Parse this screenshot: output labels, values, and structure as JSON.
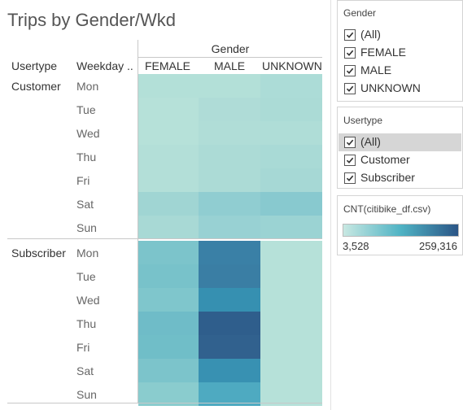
{
  "sheet": {
    "title": "Trips by Gender/Wkd",
    "row_headers": [
      "Usertype",
      "Weekday .."
    ],
    "column_group": "Gender",
    "columns": [
      "FEMALE",
      "MALE",
      "UNKNOWN"
    ],
    "rows": [
      {
        "usertype": "Customer",
        "weekday": "Mon",
        "values": [
          "#b3e0d8",
          "#b3e0d8",
          "#acdcd7"
        ]
      },
      {
        "usertype": "",
        "weekday": "Tue",
        "values": [
          "#b6e1d9",
          "#afdcd7",
          "#abdbd6"
        ]
      },
      {
        "usertype": "",
        "weekday": "Wed",
        "values": [
          "#b6e1d9",
          "#b0ddd7",
          "#afddd7"
        ]
      },
      {
        "usertype": "",
        "weekday": "Thu",
        "values": [
          "#b3dfd8",
          "#acdbd6",
          "#a9dad6"
        ]
      },
      {
        "usertype": "",
        "weekday": "Fri",
        "values": [
          "#b3dfd8",
          "#acdbd6",
          "#a6d8d5"
        ]
      },
      {
        "usertype": "",
        "weekday": "Sat",
        "values": [
          "#a0d5d3",
          "#90cdd1",
          "#88c9cf"
        ]
      },
      {
        "usertype": "",
        "weekday": "Sun",
        "values": [
          "#a8d9d5",
          "#98d1d3",
          "#9bd3d3"
        ]
      },
      {
        "usertype": "Subscriber",
        "weekday": "Mon",
        "values": [
          "#7cc4cb",
          "#3a80a6",
          "#b6e1d9"
        ]
      },
      {
        "usertype": "",
        "weekday": "Tue",
        "values": [
          "#78c2ca",
          "#3a7ea4",
          "#b6e1d9"
        ]
      },
      {
        "usertype": "",
        "weekday": "Wed",
        "values": [
          "#7fc6cc",
          "#3690b1",
          "#b6e1d9"
        ]
      },
      {
        "usertype": "",
        "weekday": "Thu",
        "values": [
          "#6fbcc8",
          "#2f5e8c",
          "#b6e1d9"
        ]
      },
      {
        "usertype": "",
        "weekday": "Fri",
        "values": [
          "#70bec8",
          "#31618e",
          "#b6e1d9"
        ]
      },
      {
        "usertype": "",
        "weekday": "Sat",
        "values": [
          "#7cc4cb",
          "#3891b2",
          "#b6e1d9"
        ]
      },
      {
        "usertype": "",
        "weekday": "Sun",
        "values": [
          "#8accce",
          "#4eaac1",
          "#b6e1d9"
        ]
      }
    ]
  },
  "filters": {
    "gender": {
      "title": "Gender",
      "items": [
        "(All)",
        "FEMALE",
        "MALE",
        "UNKNOWN"
      ]
    },
    "usertype": {
      "title": "Usertype",
      "items": [
        "(All)",
        "Customer",
        "Subscriber"
      ],
      "selected_index": 0
    }
  },
  "legend": {
    "title": "CNT(citibike_df.csv)",
    "min": "3,528",
    "max": "259,316"
  }
}
